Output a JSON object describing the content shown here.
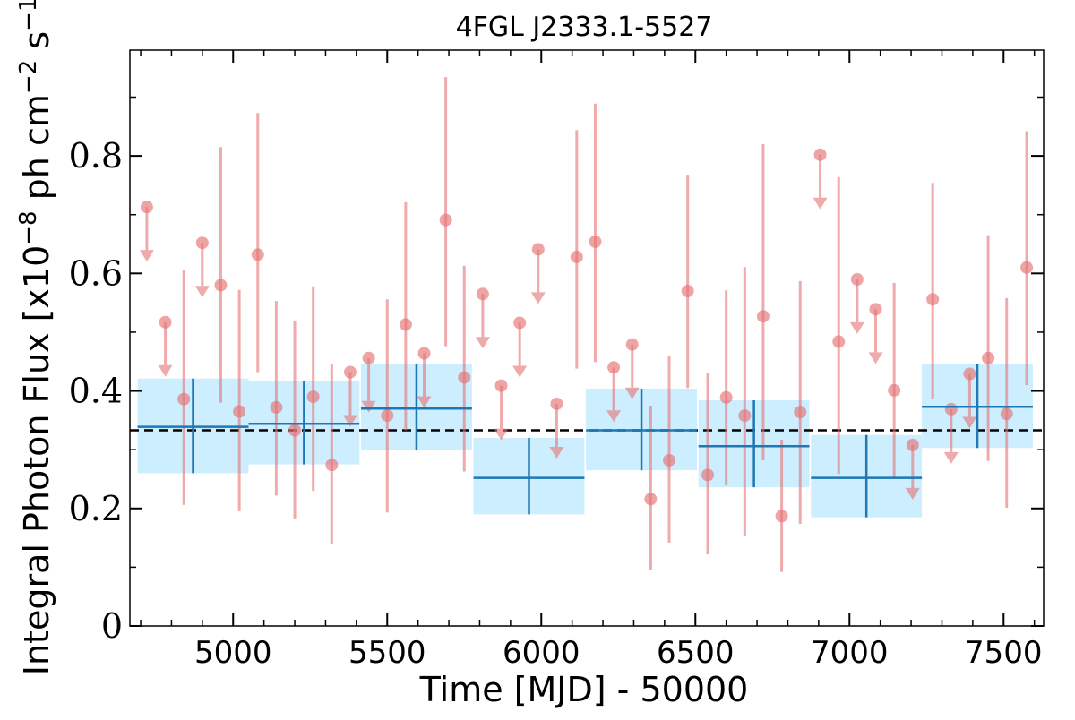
{
  "chart_data": {
    "type": "scatter",
    "title": "4FGL J2333.1-5527",
    "xlabel": "Time [MJD] - 50000",
    "ylabel": {
      "prefix": "Integral Photon Flux [x10",
      "exp1": "−8",
      "mid": " ph cm",
      "exp2": "−2",
      "mid2": " s",
      "exp3": "−1",
      "suffix": "]"
    },
    "xlim": [
      4665,
      7630
    ],
    "ylim": [
      0,
      0.98
    ],
    "xticks": [
      5000,
      5500,
      6000,
      6500,
      7000,
      7500
    ],
    "xtick_labels": [
      "5000",
      "5500",
      "6000",
      "6500",
      "7000",
      "7500"
    ],
    "yticks": [
      0,
      0.2,
      0.4,
      0.6,
      0.8
    ],
    "ytick_labels": [
      "0",
      "0.2",
      "0.4",
      "0.6",
      "0.8"
    ],
    "reference_line_y": 0.333,
    "colors": {
      "short_bins": "#e57373",
      "long_bins": "#1f77b4",
      "long_band": "#cceeff",
      "reference": "#000000"
    },
    "short_bins": [
      {
        "x": 4720,
        "y": 0.713,
        "upper_limit": true
      },
      {
        "x": 4780,
        "y": 0.517,
        "upper_limit": true
      },
      {
        "x": 4840,
        "y": 0.386,
        "err": [
          0.18,
          0.22
        ]
      },
      {
        "x": 4900,
        "y": 0.652,
        "upper_limit": true
      },
      {
        "x": 4960,
        "y": 0.58,
        "err": [
          0.2,
          0.235
        ]
      },
      {
        "x": 5020,
        "y": 0.365,
        "err": [
          0.17,
          0.207
        ]
      },
      {
        "x": 5080,
        "y": 0.632,
        "err": [
          0.2,
          0.241
        ]
      },
      {
        "x": 5140,
        "y": 0.372,
        "err": [
          0.15,
          0.181
        ]
      },
      {
        "x": 5200,
        "y": 0.333,
        "err": [
          0.15,
          0.187
        ]
      },
      {
        "x": 5260,
        "y": 0.39,
        "err": [
          0.16,
          0.188
        ]
      },
      {
        "x": 5320,
        "y": 0.274,
        "err": [
          0.135,
          0.171
        ]
      },
      {
        "x": 5380,
        "y": 0.432,
        "upper_limit": true
      },
      {
        "x": 5440,
        "y": 0.456,
        "upper_limit": true
      },
      {
        "x": 5500,
        "y": 0.358,
        "err": [
          0.165,
          0.198
        ]
      },
      {
        "x": 5560,
        "y": 0.513,
        "err": [
          0.18,
          0.208
        ]
      },
      {
        "x": 5620,
        "y": 0.464,
        "upper_limit": true
      },
      {
        "x": 5690,
        "y": 0.691,
        "err": [
          0.215,
          0.243
        ]
      },
      {
        "x": 5750,
        "y": 0.423,
        "err": [
          0.16,
          0.19
        ]
      },
      {
        "x": 5810,
        "y": 0.565,
        "upper_limit": true
      },
      {
        "x": 5870,
        "y": 0.409,
        "upper_limit": true
      },
      {
        "x": 5930,
        "y": 0.516,
        "upper_limit": true
      },
      {
        "x": 5990,
        "y": 0.641,
        "upper_limit": true
      },
      {
        "x": 6050,
        "y": 0.378,
        "upper_limit": true
      },
      {
        "x": 6115,
        "y": 0.628,
        "err": [
          0.19,
          0.216
        ]
      },
      {
        "x": 6175,
        "y": 0.654,
        "err": [
          0.205,
          0.235
        ]
      },
      {
        "x": 6235,
        "y": 0.44,
        "upper_limit": true
      },
      {
        "x": 6295,
        "y": 0.479,
        "upper_limit": true
      },
      {
        "x": 6355,
        "y": 0.216,
        "err": [
          0.12,
          0.159
        ]
      },
      {
        "x": 6415,
        "y": 0.282,
        "err": [
          0.14,
          0.178
        ]
      },
      {
        "x": 6475,
        "y": 0.57,
        "err": [
          0.165,
          0.198
        ]
      },
      {
        "x": 6540,
        "y": 0.257,
        "err": [
          0.135,
          0.173
        ]
      },
      {
        "x": 6600,
        "y": 0.389,
        "err": [
          0.15,
          0.182
        ]
      },
      {
        "x": 6660,
        "y": 0.358,
        "err": [
          0.205,
          0.253
        ]
      },
      {
        "x": 6720,
        "y": 0.527,
        "err": [
          0.245,
          0.293
        ]
      },
      {
        "x": 6780,
        "y": 0.187,
        "err": [
          0.095,
          0.13
        ]
      },
      {
        "x": 6840,
        "y": 0.364,
        "err": [
          0.19,
          0.223
        ]
      },
      {
        "x": 6905,
        "y": 0.802,
        "upper_limit": true
      },
      {
        "x": 6965,
        "y": 0.484,
        "err": [
          0.225,
          0.28
        ]
      },
      {
        "x": 7025,
        "y": 0.59,
        "upper_limit": true
      },
      {
        "x": 7085,
        "y": 0.539,
        "upper_limit": true
      },
      {
        "x": 7145,
        "y": 0.401,
        "err": [
          0.15,
          0.183
        ]
      },
      {
        "x": 7205,
        "y": 0.308,
        "upper_limit": true
      },
      {
        "x": 7270,
        "y": 0.556,
        "err": [
          0.17,
          0.198
        ]
      },
      {
        "x": 7330,
        "y": 0.369,
        "upper_limit": true
      },
      {
        "x": 7390,
        "y": 0.429,
        "upper_limit": true
      },
      {
        "x": 7450,
        "y": 0.456,
        "err": [
          0.175,
          0.209
        ]
      },
      {
        "x": 7510,
        "y": 0.361,
        "err": [
          0.16,
          0.197
        ]
      },
      {
        "x": 7575,
        "y": 0.61,
        "err": [
          0.2,
          0.232
        ]
      }
    ],
    "long_bins": [
      {
        "x": 4870,
        "xerr": 180,
        "y": 0.339,
        "yerr": [
          0.079,
          0.082
        ]
      },
      {
        "x": 5230,
        "xerr": 180,
        "y": 0.344,
        "yerr": [
          0.069,
          0.072
        ]
      },
      {
        "x": 5595,
        "xerr": 180,
        "y": 0.37,
        "yerr": [
          0.071,
          0.076
        ]
      },
      {
        "x": 5960,
        "xerr": 180,
        "y": 0.252,
        "yerr": [
          0.062,
          0.068
        ]
      },
      {
        "x": 6325,
        "xerr": 180,
        "y": 0.333,
        "yerr": [
          0.068,
          0.071
        ]
      },
      {
        "x": 6690,
        "xerr": 180,
        "y": 0.306,
        "yerr": [
          0.07,
          0.078
        ]
      },
      {
        "x": 7055,
        "xerr": 180,
        "y": 0.252,
        "yerr": [
          0.067,
          0.073
        ]
      },
      {
        "x": 7415,
        "xerr": 180,
        "y": 0.373,
        "yerr": [
          0.07,
          0.072
        ]
      }
    ]
  }
}
